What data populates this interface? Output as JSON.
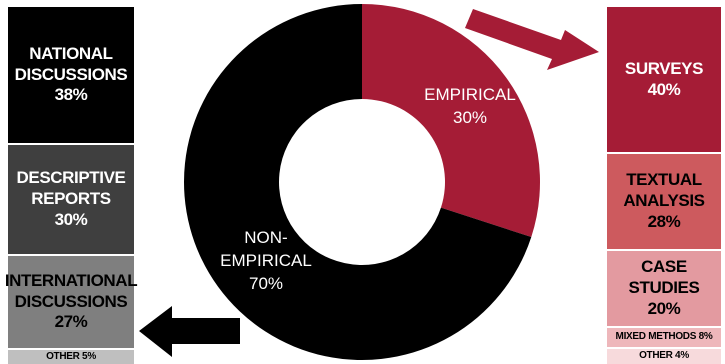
{
  "chart_data": {
    "type": "donut",
    "slices": [
      {
        "name": "EMPIRICAL",
        "value": 30,
        "color": "#a51c36"
      },
      {
        "name": "NON-EMPIRICAL",
        "value": 70,
        "color": "#000000"
      }
    ],
    "slice_labels": [
      "EMPIRICAL\n30%",
      "NON-\nEMPIRICAL\n70%"
    ],
    "empirical_breakdown": [
      {
        "name": "SURVEYS",
        "value": 40,
        "label": "SURVEYS\n40%",
        "color": "#a51c36",
        "text_color": "#ffffff"
      },
      {
        "name": "TEXTUAL ANALYSIS",
        "value": 28,
        "label": "TEXTUAL\nANALYSIS\n28%",
        "color": "#cd5a5e",
        "text_color": "#000000"
      },
      {
        "name": "CASE STUDIES",
        "value": 20,
        "label": "CASE STUDIES\n20%",
        "color": "#e39aa0",
        "text_color": "#000000"
      },
      {
        "name": "MIXED METHODS",
        "value": 8,
        "label": "MIXED METHODS 8%",
        "color": "#eeb7bb",
        "text_color": "#000000"
      },
      {
        "name": "OTHER",
        "value": 4,
        "label": "OTHER 4%",
        "color": "#f7dadc",
        "text_color": "#000000"
      }
    ],
    "non_empirical_breakdown": [
      {
        "name": "NATIONAL DISCUSSIONS",
        "value": 38,
        "label": "NATIONAL\nDISCUSSIONS\n38%",
        "color": "#000000",
        "text_color": "#ffffff"
      },
      {
        "name": "DESCRIPTIVE REPORTS",
        "value": 30,
        "label": "DESCRIPTIVE\nREPORTS\n30%",
        "color": "#3f3f3f",
        "text_color": "#ffffff"
      },
      {
        "name": "INTERNATIONAL DISCUSSIONS",
        "value": 27,
        "label": "INTERNATIONAL\nDISCUSSIONS\n27%",
        "color": "#7f7f7f",
        "text_color": "#000000"
      },
      {
        "name": "OTHER",
        "value": 5,
        "label": "OTHER 5%",
        "color": "#bfbfbf",
        "text_color": "#000000"
      }
    ],
    "arrow_color_empirical": "#a51c36",
    "arrow_color_non_empirical": "#000000"
  }
}
